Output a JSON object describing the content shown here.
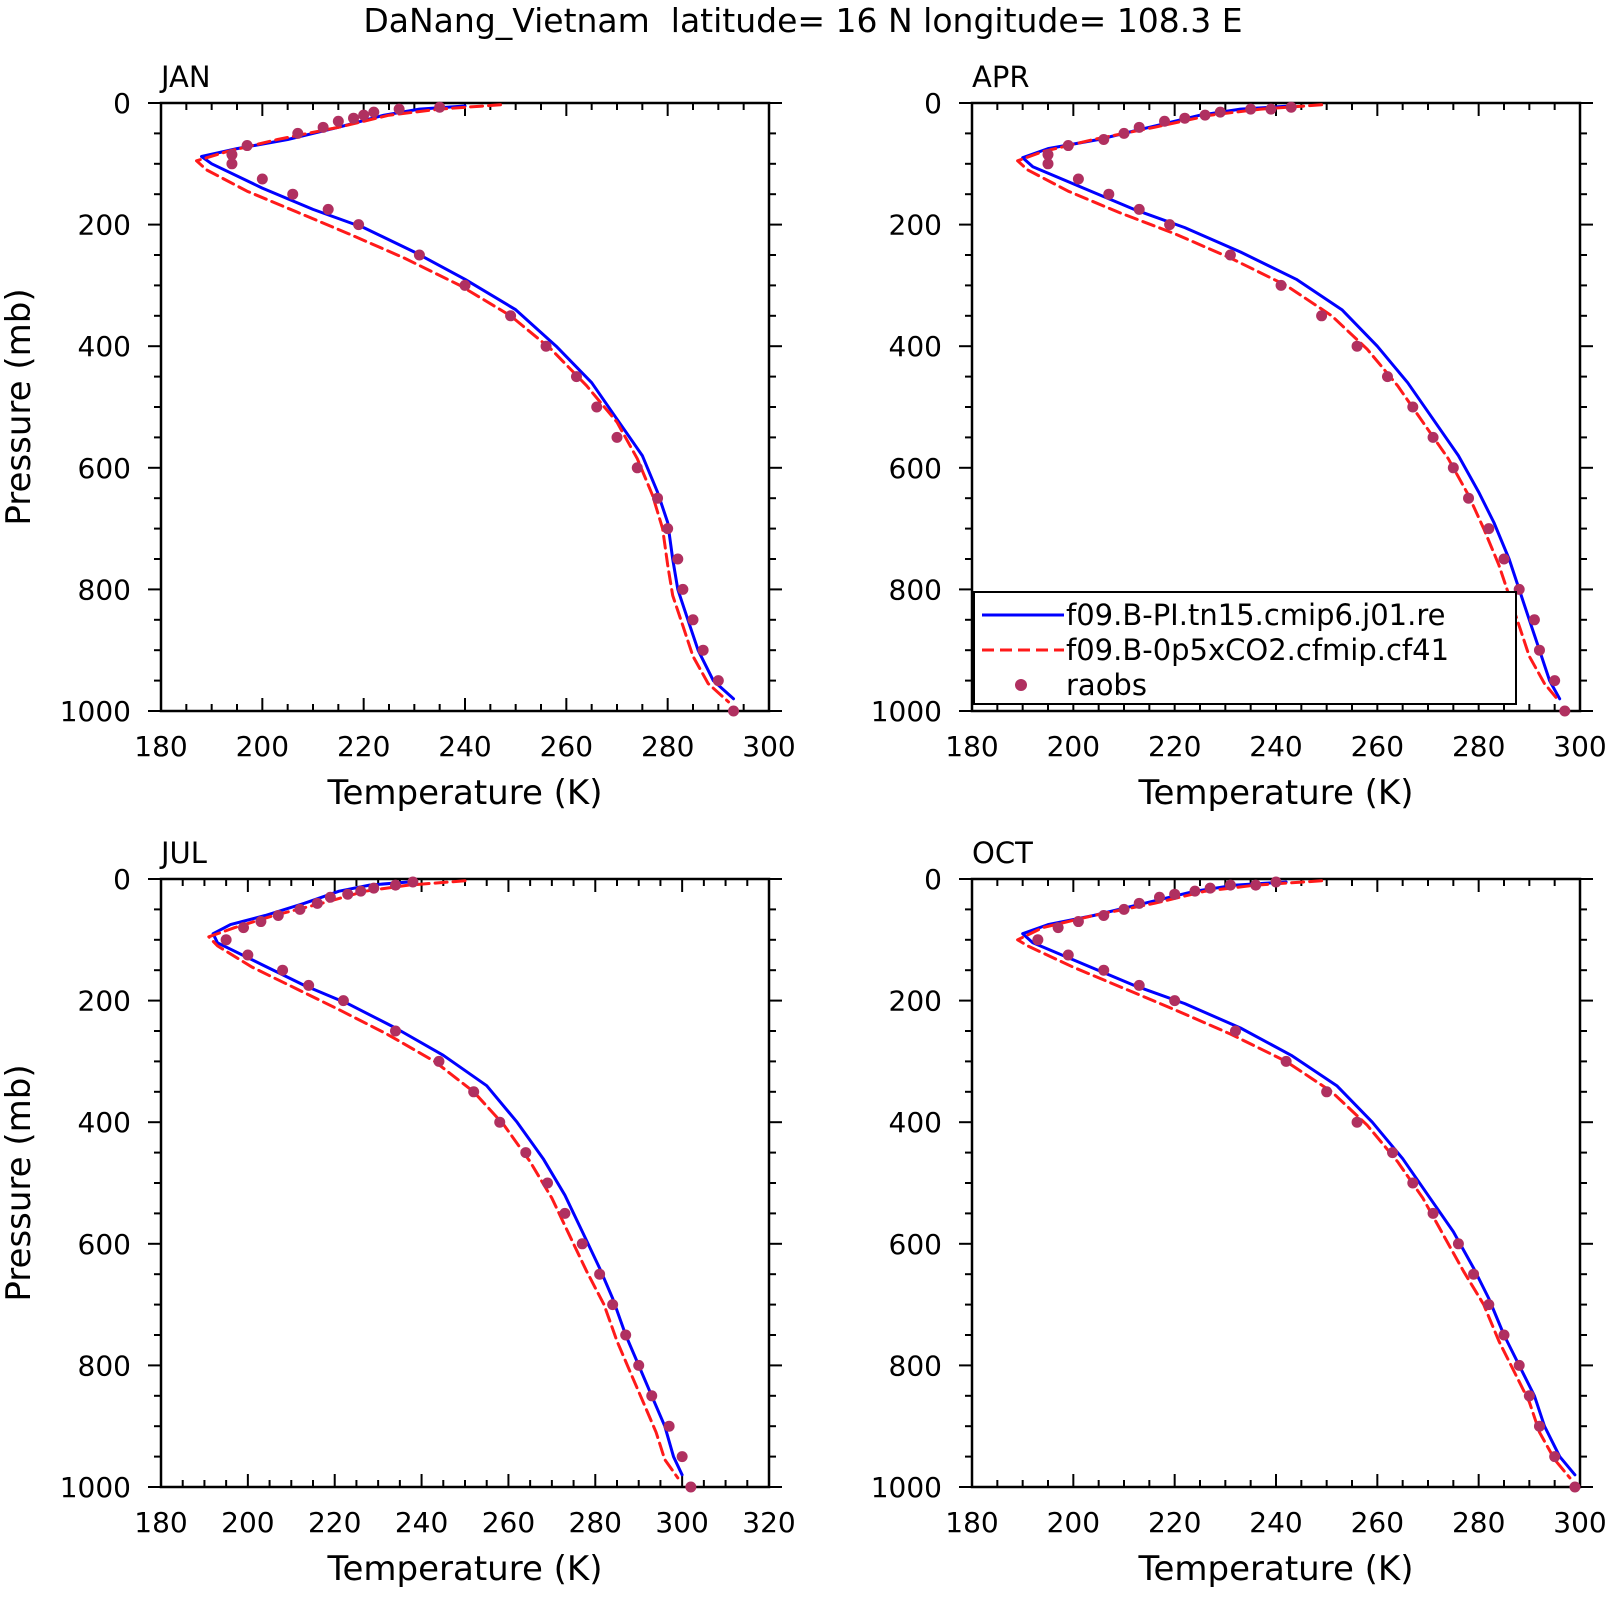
{
  "title": "DaNang_Vietnam  latitude= 16 N longitude= 108.3 E",
  "colors": {
    "model_1": "#0000ff",
    "model_2": "#ff1a1a",
    "raobs": "#b03060"
  },
  "legend": {
    "panel": "APR",
    "entries": [
      {
        "label": "f09.B-PI.tn15.cmip6.j01.re",
        "style": "solid",
        "color": "#0000ff"
      },
      {
        "label": "f09.B-0p5xCO2.cfmip.cf41",
        "style": "dashed",
        "color": "#ff1a1a"
      },
      {
        "label": "raobs",
        "style": "dot",
        "color": "#b03060"
      }
    ]
  },
  "chart_data": [
    {
      "type": "line",
      "panel_label": "JAN",
      "xlabel": "Temperature (K)",
      "ylabel": "Pressure (mb)",
      "xlim": [
        180,
        300
      ],
      "xticks": [
        180,
        200,
        220,
        240,
        260,
        280,
        300
      ],
      "ylim": [
        1000,
        0
      ],
      "yticks": [
        0,
        200,
        400,
        600,
        800,
        1000
      ],
      "series": [
        {
          "key": "model_1",
          "style": "solid",
          "x": [
            240,
            231,
            224,
            215,
            205,
            195,
            188,
            190,
            200,
            210,
            220,
            230,
            240,
            250,
            258,
            265,
            270,
            275,
            278,
            280,
            281,
            282,
            284,
            286,
            289,
            293
          ],
          "y": [
            5,
            10,
            20,
            40,
            60,
            75,
            88,
            100,
            140,
            175,
            205,
            245,
            290,
            340,
            400,
            460,
            520,
            580,
            640,
            690,
            750,
            800,
            850,
            900,
            950,
            980
          ]
        },
        {
          "key": "model_2",
          "style": "dashed",
          "x": [
            247,
            235,
            225,
            215,
            203,
            193,
            187,
            189,
            197,
            207,
            217,
            228,
            239,
            249,
            257,
            264,
            270,
            274,
            277,
            279,
            280,
            281,
            283,
            285,
            288,
            292
          ],
          "y": [
            3,
            10,
            20,
            40,
            60,
            80,
            95,
            110,
            145,
            180,
            215,
            255,
            300,
            350,
            405,
            465,
            525,
            585,
            645,
            700,
            760,
            810,
            860,
            910,
            955,
            985
          ]
        },
        {
          "key": "raobs",
          "style": "dot",
          "x": [
            235,
            227,
            222,
            220,
            218,
            215,
            212,
            207,
            197,
            194,
            194,
            200,
            206,
            213,
            219,
            231,
            240,
            249,
            256,
            262,
            266,
            270,
            274,
            278,
            280,
            282,
            283,
            285,
            287,
            290,
            293
          ],
          "y": [
            7,
            10,
            15,
            20,
            25,
            30,
            40,
            50,
            70,
            85,
            100,
            125,
            150,
            175,
            200,
            250,
            300,
            350,
            400,
            450,
            500,
            550,
            600,
            650,
            700,
            750,
            800,
            850,
            900,
            950,
            1000
          ]
        }
      ]
    },
    {
      "type": "line",
      "panel_label": "APR",
      "xlabel": "Temperature (K)",
      "ylabel": "",
      "xlim": [
        180,
        300
      ],
      "xticks": [
        180,
        200,
        220,
        240,
        260,
        280,
        300
      ],
      "ylim": [
        1000,
        0
      ],
      "yticks": [
        0,
        200,
        400,
        600,
        800,
        1000
      ],
      "series": [
        {
          "key": "model_1",
          "style": "solid",
          "x": [
            243,
            233,
            225,
            215,
            205,
            195,
            190,
            192,
            202,
            212,
            222,
            233,
            244,
            253,
            260,
            266,
            271,
            276,
            280,
            283,
            286,
            288,
            290,
            292,
            294,
            296
          ],
          "y": [
            5,
            10,
            20,
            40,
            60,
            75,
            90,
            105,
            140,
            175,
            205,
            245,
            290,
            340,
            400,
            460,
            520,
            580,
            640,
            690,
            750,
            800,
            850,
            900,
            950,
            980
          ]
        },
        {
          "key": "model_2",
          "style": "dashed",
          "x": [
            249,
            237,
            227,
            216,
            204,
            194,
            189,
            191,
            199,
            209,
            220,
            231,
            242,
            251,
            258,
            264,
            269,
            274,
            278,
            281,
            284,
            286,
            288,
            290,
            293,
            296
          ],
          "y": [
            3,
            10,
            20,
            40,
            60,
            80,
            95,
            110,
            145,
            180,
            215,
            255,
            300,
            350,
            405,
            465,
            525,
            585,
            645,
            700,
            760,
            810,
            860,
            910,
            955,
            985
          ]
        },
        {
          "key": "raobs",
          "style": "dot",
          "x": [
            243,
            239,
            235,
            229,
            226,
            222,
            218,
            213,
            210,
            206,
            199,
            195,
            195,
            201,
            207,
            213,
            219,
            231,
            241,
            249,
            256,
            262,
            267,
            271,
            275,
            278,
            282,
            285,
            288,
            291,
            292,
            295,
            297
          ],
          "y": [
            7,
            10,
            10,
            15,
            20,
            25,
            30,
            40,
            50,
            60,
            70,
            85,
            100,
            125,
            150,
            175,
            200,
            250,
            300,
            350,
            400,
            450,
            500,
            550,
            600,
            650,
            700,
            750,
            800,
            850,
            900,
            950,
            1000
          ]
        }
      ]
    },
    {
      "type": "line",
      "panel_label": "JUL",
      "xlabel": "Temperature (K)",
      "ylabel": "Pressure (mb)",
      "xlim": [
        180,
        320
      ],
      "xticks": [
        180,
        200,
        220,
        240,
        260,
        280,
        300,
        320
      ],
      "ylim": [
        1000,
        0
      ],
      "yticks": [
        0,
        200,
        400,
        600,
        800,
        1000
      ],
      "series": [
        {
          "key": "model_1",
          "style": "solid",
          "x": [
            237,
            228,
            221,
            213,
            204,
            196,
            192,
            193,
            203,
            213,
            223,
            234,
            245,
            255,
            262,
            268,
            273,
            277,
            281,
            284,
            287,
            290,
            293,
            296,
            298,
            300
          ],
          "y": [
            5,
            10,
            20,
            40,
            60,
            75,
            90,
            105,
            140,
            175,
            205,
            245,
            290,
            340,
            400,
            460,
            520,
            580,
            640,
            690,
            750,
            800,
            850,
            900,
            950,
            980
          ]
        },
        {
          "key": "model_2",
          "style": "dashed",
          "x": [
            250,
            237,
            227,
            217,
            206,
            197,
            191,
            193,
            201,
            211,
            221,
            232,
            243,
            252,
            259,
            265,
            270,
            274,
            278,
            282,
            285,
            288,
            291,
            294,
            296,
            299
          ],
          "y": [
            3,
            10,
            20,
            40,
            60,
            80,
            95,
            110,
            145,
            180,
            215,
            255,
            300,
            350,
            405,
            465,
            525,
            585,
            645,
            700,
            760,
            810,
            860,
            910,
            955,
            985
          ]
        },
        {
          "key": "raobs",
          "style": "dot",
          "x": [
            238,
            234,
            229,
            226,
            223,
            219,
            216,
            212,
            207,
            203,
            199,
            195,
            200,
            208,
            214,
            222,
            234,
            244,
            252,
            258,
            264,
            269,
            273,
            277,
            281,
            284,
            287,
            290,
            293,
            297,
            300,
            302
          ],
          "y": [
            5,
            10,
            15,
            20,
            25,
            30,
            40,
            50,
            60,
            70,
            80,
            100,
            125,
            150,
            175,
            200,
            250,
            300,
            350,
            400,
            450,
            500,
            550,
            600,
            650,
            700,
            750,
            800,
            850,
            900,
            950,
            1000
          ]
        }
      ]
    },
    {
      "type": "line",
      "panel_label": "OCT",
      "xlabel": "Temperature (K)",
      "ylabel": "",
      "xlim": [
        180,
        300
      ],
      "xticks": [
        180,
        200,
        220,
        240,
        260,
        280,
        300
      ],
      "ylim": [
        1000,
        0
      ],
      "yticks": [
        0,
        200,
        400,
        600,
        800,
        1000
      ],
      "series": [
        {
          "key": "model_1",
          "style": "solid",
          "x": [
            242,
            232,
            224,
            214,
            204,
            195,
            190,
            192,
            202,
            212,
            222,
            233,
            243,
            252,
            259,
            265,
            270,
            275,
            279,
            282,
            285,
            288,
            291,
            293,
            296,
            299
          ],
          "y": [
            5,
            10,
            20,
            40,
            60,
            75,
            90,
            105,
            140,
            175,
            205,
            245,
            290,
            340,
            400,
            460,
            520,
            580,
            640,
            690,
            750,
            800,
            850,
            900,
            950,
            980
          ]
        },
        {
          "key": "model_2",
          "style": "dashed",
          "x": [
            249,
            236,
            226,
            216,
            204,
            194,
            189,
            191,
            200,
            210,
            220,
            231,
            242,
            251,
            258,
            264,
            269,
            273,
            277,
            281,
            284,
            287,
            290,
            292,
            295,
            298
          ],
          "y": [
            3,
            10,
            20,
            40,
            60,
            80,
            100,
            110,
            145,
            180,
            215,
            255,
            300,
            350,
            405,
            465,
            525,
            585,
            645,
            700,
            760,
            810,
            860,
            910,
            955,
            985
          ]
        },
        {
          "key": "raobs",
          "style": "dot",
          "x": [
            240,
            236,
            231,
            227,
            224,
            220,
            217,
            213,
            210,
            206,
            201,
            197,
            193,
            199,
            206,
            213,
            220,
            232,
            242,
            250,
            256,
            263,
            267,
            271,
            276,
            279,
            282,
            285,
            288,
            290,
            292,
            295,
            299
          ],
          "y": [
            5,
            10,
            10,
            15,
            20,
            25,
            30,
            40,
            50,
            60,
            70,
            80,
            100,
            125,
            150,
            175,
            200,
            250,
            300,
            350,
            400,
            450,
            500,
            550,
            600,
            650,
            700,
            750,
            800,
            850,
            900,
            950,
            1000
          ]
        }
      ]
    }
  ]
}
